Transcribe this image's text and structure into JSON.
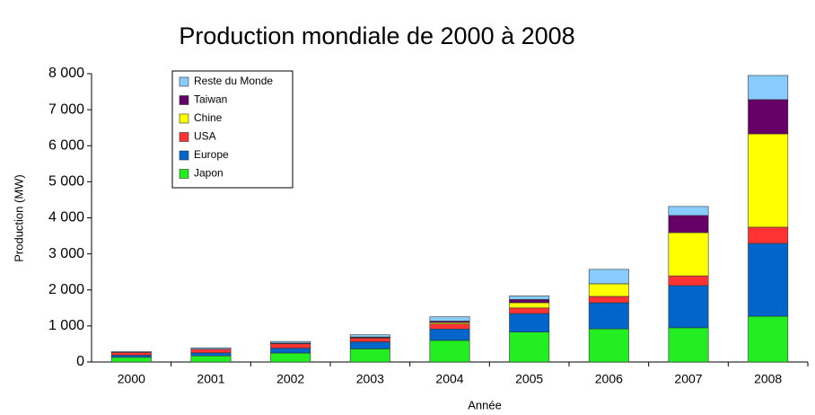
{
  "chart_data": {
    "type": "stacked_bar",
    "title": "Production mondiale de 2000 à 2008",
    "x_label": "Année",
    "y_label": "Production (MW)",
    "categories": [
      "2000",
      "2001",
      "2002",
      "2003",
      "2004",
      "2005",
      "2006",
      "2007",
      "2008"
    ],
    "series": [
      {
        "name": "Japon",
        "color": "#22ee22",
        "values": [
          130,
          170,
          250,
          365,
          600,
          830,
          920,
          950,
          1270
        ]
      },
      {
        "name": "Europe",
        "color": "#0066cc",
        "values": [
          60,
          85,
          135,
          195,
          315,
          515,
          725,
          1170,
          2020
        ]
      },
      {
        "name": "USA",
        "color": "#ff3333",
        "values": [
          75,
          100,
          120,
          105,
          140,
          155,
          175,
          270,
          450
        ]
      },
      {
        "name": "Chine",
        "color": "#ffff00",
        "values": [
          0,
          0,
          10,
          15,
          40,
          145,
          350,
          1200,
          2590
        ]
      },
      {
        "name": "Taiwan",
        "color": "#660066",
        "values": [
          0,
          0,
          10,
          15,
          40,
          90,
          0,
          475,
          950
        ]
      },
      {
        "name": "Reste du Monde",
        "color": "#88ccff",
        "values": [
          25,
          40,
          45,
          60,
          120,
          100,
          400,
          250,
          670
        ]
      }
    ],
    "ylim": [
      0,
      8000
    ],
    "yticks": [
      0,
      {
        "value": 1000,
        "label": "1 000"
      },
      {
        "value": 2000,
        "label": "2 000"
      },
      {
        "value": 3000,
        "label": "3 000"
      },
      {
        "value": 4000,
        "label": "4 000"
      },
      {
        "value": 5000,
        "label": "5 000"
      },
      {
        "value": 6000,
        "label": "6 000"
      },
      {
        "value": 7000,
        "label": "7 000"
      },
      {
        "value": 8000,
        "label": "8 000"
      }
    ],
    "grid": false,
    "legend_position": "upper left"
  }
}
